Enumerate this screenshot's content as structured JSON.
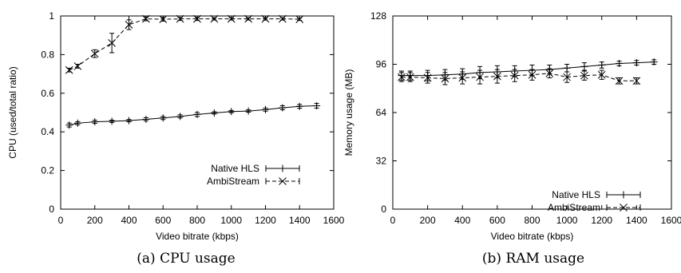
{
  "chart_data": [
    {
      "type": "line",
      "caption": "(a) CPU usage",
      "xlabel": "Video bitrate (kbps)",
      "ylabel": "CPU (used/total ratio)",
      "xlim": [
        0,
        1600
      ],
      "ylim": [
        0,
        1
      ],
      "xticks": [
        0,
        200,
        400,
        600,
        800,
        1000,
        1200,
        1400,
        1600
      ],
      "yticks": [
        0,
        0.2,
        0.4,
        0.6,
        0.8,
        1
      ],
      "xtick_labels": [
        "0",
        "200",
        "400",
        "600",
        "800",
        "1000",
        "1200",
        "1400",
        "1600"
      ],
      "ytick_labels": [
        "0",
        "0.2",
        "0.4",
        "0.6",
        "0.8",
        "1"
      ],
      "grid": false,
      "legend_position": "bottom-right",
      "series": [
        {
          "name": "Native HLS",
          "marker": "plus",
          "line": "solid",
          "x": [
            50,
            100,
            200,
            300,
            400,
            500,
            600,
            700,
            800,
            900,
            1000,
            1100,
            1200,
            1300,
            1400,
            1500
          ],
          "y": [
            0.435,
            0.445,
            0.452,
            0.455,
            0.458,
            0.465,
            0.472,
            0.48,
            0.49,
            0.498,
            0.505,
            0.508,
            0.515,
            0.525,
            0.532,
            0.535
          ],
          "err": [
            0.01,
            0.008,
            0.008,
            0.006,
            0.006,
            0.008,
            0.008,
            0.008,
            0.01,
            0.006,
            0.006,
            0.006,
            0.008,
            0.01,
            0.01,
            0.012
          ]
        },
        {
          "name": "AmbiStream",
          "marker": "x",
          "line": "dashed",
          "x": [
            50,
            100,
            200,
            300,
            400,
            500,
            600,
            700,
            800,
            900,
            1000,
            1100,
            1200,
            1300,
            1400
          ],
          "y": [
            0.72,
            0.74,
            0.805,
            0.86,
            0.955,
            0.985,
            0.983,
            0.985,
            0.985,
            0.985,
            0.985,
            0.985,
            0.985,
            0.985,
            0.983
          ],
          "err": [
            0.01,
            0.01,
            0.02,
            0.05,
            0.025,
            0.01,
            0.01,
            0.008,
            0.008,
            0.006,
            0.006,
            0.006,
            0.006,
            0.006,
            0.006
          ]
        }
      ]
    },
    {
      "type": "line",
      "caption": "(b) RAM usage",
      "xlabel": "Video bitrate (kbps)",
      "ylabel": "Memory usage (MB)",
      "xlim": [
        0,
        1600
      ],
      "ylim": [
        0,
        128
      ],
      "xticks": [
        0,
        200,
        400,
        600,
        800,
        1000,
        1200,
        1400,
        1600
      ],
      "yticks": [
        0,
        32,
        64,
        96,
        128
      ],
      "xtick_labels": [
        "0",
        "200",
        "400",
        "600",
        "800",
        "1000",
        "1200",
        "1400",
        "1600"
      ],
      "ytick_labels": [
        "0",
        "32",
        "64",
        "96",
        "128"
      ],
      "grid": false,
      "legend_position": "bottom-right",
      "series": [
        {
          "name": "Native HLS",
          "marker": "plus",
          "line": "solid",
          "x": [
            50,
            100,
            200,
            300,
            400,
            500,
            600,
            700,
            800,
            900,
            1000,
            1100,
            1200,
            1300,
            1400,
            1500
          ],
          "y": [
            88.5,
            88.5,
            88.5,
            89,
            89.5,
            90.5,
            91,
            91.5,
            92,
            92.5,
            93.5,
            94.5,
            95.5,
            96.5,
            97,
            97.5
          ],
          "err": [
            3,
            3,
            3.5,
            3.5,
            3.5,
            4,
            4,
            3.5,
            3.5,
            3,
            2.5,
            2.5,
            2,
            1.5,
            1.5,
            1.5
          ]
        },
        {
          "name": "AmbiStream",
          "marker": "x",
          "line": "dashed",
          "x": [
            50,
            100,
            200,
            300,
            400,
            500,
            600,
            700,
            800,
            900,
            1000,
            1100,
            1200,
            1300,
            1400
          ],
          "y": [
            87.5,
            87.5,
            87,
            86.5,
            87,
            87.5,
            88,
            88.5,
            89,
            90,
            87.5,
            88.5,
            89,
            85,
            85
          ],
          "err": [
            3,
            3,
            3.5,
            4,
            4,
            4.5,
            4.5,
            4,
            3.5,
            3,
            3.5,
            3,
            3,
            2,
            2
          ]
        }
      ]
    }
  ]
}
